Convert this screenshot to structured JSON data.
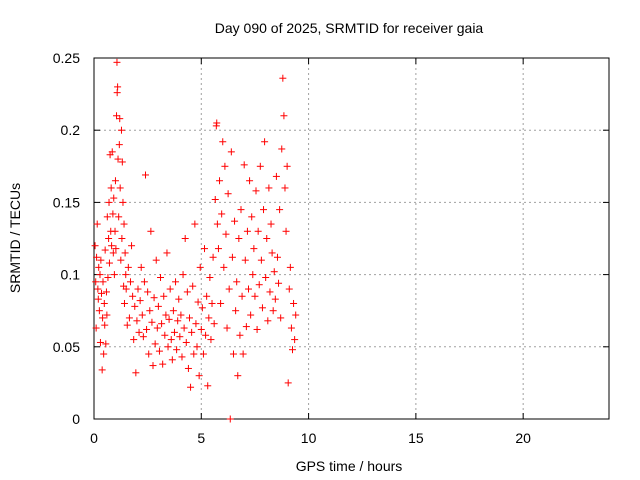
{
  "chart_data": {
    "type": "scatter",
    "title": "Day 090 of 2025, SRMTID for receiver gaia",
    "xlabel": "GPS time / hours",
    "ylabel": "SRMTID / TECUs",
    "xlim": [
      0,
      24
    ],
    "ylim": [
      0,
      0.25
    ],
    "xticks": [
      "0",
      "5",
      "10",
      "15",
      "20"
    ],
    "yticks": [
      "0",
      "0.05",
      "0.1",
      "0.15",
      "0.2",
      "0.25"
    ],
    "grid": true,
    "marker": "plus",
    "color": "#ff0000",
    "points": [
      [
        0.05,
        0.12
      ],
      [
        0.08,
        0.095
      ],
      [
        0.1,
        0.063
      ],
      [
        0.12,
        0.112
      ],
      [
        0.15,
        0.135
      ],
      [
        0.18,
        0.09
      ],
      [
        0.2,
        0.083
      ],
      [
        0.22,
        0.105
      ],
      [
        0.25,
        0.075
      ],
      [
        0.28,
        0.1
      ],
      [
        0.3,
        0.053
      ],
      [
        0.32,
        0.11
      ],
      [
        0.35,
        0.087
      ],
      [
        0.38,
        0.034
      ],
      [
        0.4,
        0.07
      ],
      [
        0.42,
        0.095
      ],
      [
        0.45,
        0.045
      ],
      [
        0.48,
        0.08
      ],
      [
        0.5,
        0.065
      ],
      [
        0.52,
        0.117
      ],
      [
        0.55,
        0.052
      ],
      [
        0.58,
        0.088
      ],
      [
        0.6,
        0.072
      ],
      [
        0.62,
        0.14
      ],
      [
        0.65,
        0.098
      ],
      [
        0.68,
        0.125
      ],
      [
        0.7,
        0.15
      ],
      [
        0.72,
        0.108
      ],
      [
        0.75,
        0.183
      ],
      [
        0.78,
        0.13
      ],
      [
        0.8,
        0.16
      ],
      [
        0.82,
        0.12
      ],
      [
        0.85,
        0.185
      ],
      [
        0.88,
        0.142
      ],
      [
        0.9,
        0.115
      ],
      [
        0.92,
        0.153
      ],
      [
        0.95,
        0.1
      ],
      [
        0.98,
        0.13
      ],
      [
        1.0,
        0.165
      ],
      [
        1.02,
        0.118
      ],
      [
        1.05,
        0.21
      ],
      [
        1.07,
        0.247
      ],
      [
        1.08,
        0.226
      ],
      [
        1.1,
        0.23
      ],
      [
        1.12,
        0.18
      ],
      [
        1.15,
        0.14
      ],
      [
        1.18,
        0.19
      ],
      [
        1.2,
        0.208
      ],
      [
        1.22,
        0.16
      ],
      [
        1.25,
        0.11
      ],
      [
        1.28,
        0.2
      ],
      [
        1.3,
        0.125
      ],
      [
        1.32,
        0.178
      ],
      [
        1.35,
        0.15
      ],
      [
        1.38,
        0.092
      ],
      [
        1.4,
        0.135
      ],
      [
        1.42,
        0.08
      ],
      [
        1.45,
        0.115
      ],
      [
        1.48,
        0.1
      ],
      [
        1.5,
        0.09
      ],
      [
        1.55,
        0.065
      ],
      [
        1.6,
        0.105
      ],
      [
        1.65,
        0.07
      ],
      [
        1.7,
        0.095
      ],
      [
        1.75,
        0.12
      ],
      [
        1.8,
        0.085
      ],
      [
        1.85,
        0.055
      ],
      [
        1.9,
        0.078
      ],
      [
        1.95,
        0.032
      ],
      [
        2.0,
        0.068
      ],
      [
        2.05,
        0.09
      ],
      [
        2.1,
        0.06
      ],
      [
        2.15,
        0.082
      ],
      [
        2.2,
        0.105
      ],
      [
        2.25,
        0.072
      ],
      [
        2.3,
        0.057
      ],
      [
        2.35,
        0.095
      ],
      [
        2.4,
        0.169
      ],
      [
        2.45,
        0.062
      ],
      [
        2.5,
        0.088
      ],
      [
        2.55,
        0.045
      ],
      [
        2.6,
        0.075
      ],
      [
        2.65,
        0.13
      ],
      [
        2.7,
        0.067
      ],
      [
        2.75,
        0.037
      ],
      [
        2.8,
        0.084
      ],
      [
        2.85,
        0.052
      ],
      [
        2.9,
        0.11
      ],
      [
        2.95,
        0.063
      ],
      [
        3.0,
        0.078
      ],
      [
        3.05,
        0.047
      ],
      [
        3.1,
        0.098
      ],
      [
        3.15,
        0.066
      ],
      [
        3.2,
        0.038
      ],
      [
        3.25,
        0.085
      ],
      [
        3.3,
        0.058
      ],
      [
        3.35,
        0.072
      ],
      [
        3.4,
        0.115
      ],
      [
        3.45,
        0.05
      ],
      [
        3.5,
        0.069
      ],
      [
        3.55,
        0.09
      ],
      [
        3.6,
        0.055
      ],
      [
        3.65,
        0.041
      ],
      [
        3.7,
        0.075
      ],
      [
        3.75,
        0.06
      ],
      [
        3.8,
        0.095
      ],
      [
        3.85,
        0.048
      ],
      [
        3.9,
        0.068
      ],
      [
        3.95,
        0.083
      ],
      [
        4.0,
        0.057
      ],
      [
        4.05,
        0.072
      ],
      [
        4.1,
        0.043
      ],
      [
        4.15,
        0.1
      ],
      [
        4.2,
        0.063
      ],
      [
        4.25,
        0.125
      ],
      [
        4.3,
        0.053
      ],
      [
        4.35,
        0.088
      ],
      [
        4.4,
        0.035
      ],
      [
        4.45,
        0.07
      ],
      [
        4.5,
        0.022
      ],
      [
        4.55,
        0.06
      ],
      [
        4.6,
        0.092
      ],
      [
        4.65,
        0.045
      ],
      [
        4.7,
        0.135
      ],
      [
        4.75,
        0.066
      ],
      [
        4.8,
        0.05
      ],
      [
        4.85,
        0.081
      ],
      [
        4.9,
        0.03
      ],
      [
        4.95,
        0.105
      ],
      [
        5.0,
        0.062
      ],
      [
        5.05,
        0.077
      ],
      [
        5.1,
        0.045
      ],
      [
        5.15,
        0.118
      ],
      [
        5.2,
        0.058
      ],
      [
        5.25,
        0.085
      ],
      [
        5.3,
        0.023
      ],
      [
        5.35,
        0.07
      ],
      [
        5.4,
        0.098
      ],
      [
        5.45,
        0.055
      ],
      [
        5.5,
        0.08
      ],
      [
        5.55,
        0.112
      ],
      [
        5.6,
        0.066
      ],
      [
        5.65,
        0.152
      ],
      [
        5.7,
        0.203
      ],
      [
        5.72,
        0.205
      ],
      [
        5.75,
        0.135
      ],
      [
        5.8,
        0.118
      ],
      [
        5.85,
        0.165
      ],
      [
        5.9,
        0.08
      ],
      [
        5.95,
        0.142
      ],
      [
        6.0,
        0.192
      ],
      [
        6.05,
        0.105
      ],
      [
        6.1,
        0.175
      ],
      [
        6.15,
        0.128
      ],
      [
        6.2,
        0.063
      ],
      [
        6.25,
        0.156
      ],
      [
        6.3,
        0.09
      ],
      [
        6.35,
        0.0
      ],
      [
        6.4,
        0.185
      ],
      [
        6.45,
        0.112
      ],
      [
        6.5,
        0.045
      ],
      [
        6.55,
        0.137
      ],
      [
        6.6,
        0.075
      ],
      [
        6.65,
        0.095
      ],
      [
        6.7,
        0.03
      ],
      [
        6.75,
        0.125
      ],
      [
        6.8,
        0.058
      ],
      [
        6.85,
        0.145
      ],
      [
        6.9,
        0.085
      ],
      [
        6.95,
        0.045
      ],
      [
        7.0,
        0.176
      ],
      [
        7.05,
        0.11
      ],
      [
        7.1,
        0.064
      ],
      [
        7.15,
        0.13
      ],
      [
        7.2,
        0.09
      ],
      [
        7.25,
        0.165
      ],
      [
        7.3,
        0.072
      ],
      [
        7.35,
        0.14
      ],
      [
        7.4,
        0.1
      ],
      [
        7.45,
        0.118
      ],
      [
        7.5,
        0.085
      ],
      [
        7.55,
        0.158
      ],
      [
        7.6,
        0.062
      ],
      [
        7.65,
        0.13
      ],
      [
        7.7,
        0.093
      ],
      [
        7.75,
        0.175
      ],
      [
        7.8,
        0.11
      ],
      [
        7.85,
        0.077
      ],
      [
        7.9,
        0.145
      ],
      [
        7.95,
        0.192
      ],
      [
        8.0,
        0.098
      ],
      [
        8.05,
        0.125
      ],
      [
        8.1,
        0.068
      ],
      [
        8.15,
        0.16
      ],
      [
        8.2,
        0.088
      ],
      [
        8.25,
        0.135
      ],
      [
        8.3,
        0.115
      ],
      [
        8.35,
        0.075
      ],
      [
        8.4,
        0.102
      ],
      [
        8.45,
        0.083
      ],
      [
        8.5,
        0.168
      ],
      [
        8.55,
        0.112
      ],
      [
        8.6,
        0.094
      ],
      [
        8.65,
        0.145
      ],
      [
        8.7,
        0.07
      ],
      [
        8.75,
        0.187
      ],
      [
        8.8,
        0.236
      ],
      [
        8.85,
        0.21
      ],
      [
        8.9,
        0.16
      ],
      [
        8.95,
        0.13
      ],
      [
        9.0,
        0.175
      ],
      [
        9.05,
        0.025
      ],
      [
        9.1,
        0.09
      ],
      [
        9.15,
        0.105
      ],
      [
        9.2,
        0.063
      ],
      [
        9.25,
        0.048
      ],
      [
        9.3,
        0.08
      ],
      [
        9.35,
        0.055
      ],
      [
        9.4,
        0.072
      ]
    ]
  }
}
